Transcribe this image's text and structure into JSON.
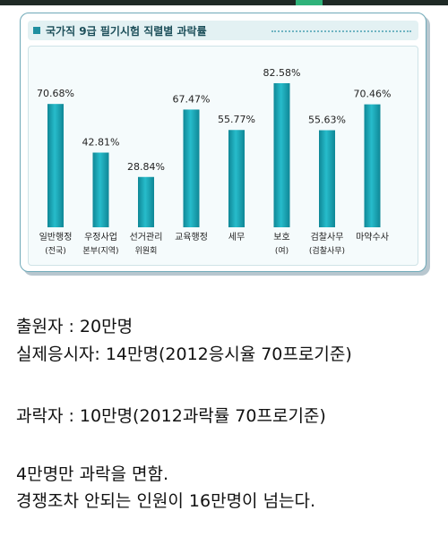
{
  "figure": {
    "title": "국가직 9급 필기시험 직렬별 과락률"
  },
  "chart_data": {
    "type": "bar",
    "title": "국가직 9급 필기시험 직렬별 과락률",
    "xlabel": "",
    "ylabel": "",
    "grid": false,
    "ylim": [
      0,
      100
    ],
    "categories": [
      [
        "일반행정",
        "(전국)"
      ],
      [
        "우정사업",
        "본부(지역)"
      ],
      [
        "선거관리",
        "위원회"
      ],
      [
        "교육행정"
      ],
      [
        "세무"
      ],
      [
        "보호",
        "(여)"
      ],
      [
        "검찰사무",
        "(검찰사무)"
      ],
      [
        "마약수사"
      ]
    ],
    "values": [
      70.68,
      42.81,
      28.84,
      67.47,
      55.77,
      82.58,
      55.63,
      70.46
    ],
    "value_labels": [
      "70.68%",
      "42.81%",
      "28.84%",
      "67.47%",
      "55.77%",
      "82.58%",
      "55.63%",
      "70.46%"
    ],
    "bar_color": "#1aa3b3"
  },
  "caption": {
    "lines": [
      "출원자 : 20만명",
      "실제응시자: 14만명(2012응시율 70프로기준)",
      "과락자 : 10만명(2012과락률 70프로기준)",
      "4만명만 과락을 면함.",
      "경쟁조차 안되는 인원이 16만명이 넘는다."
    ]
  }
}
